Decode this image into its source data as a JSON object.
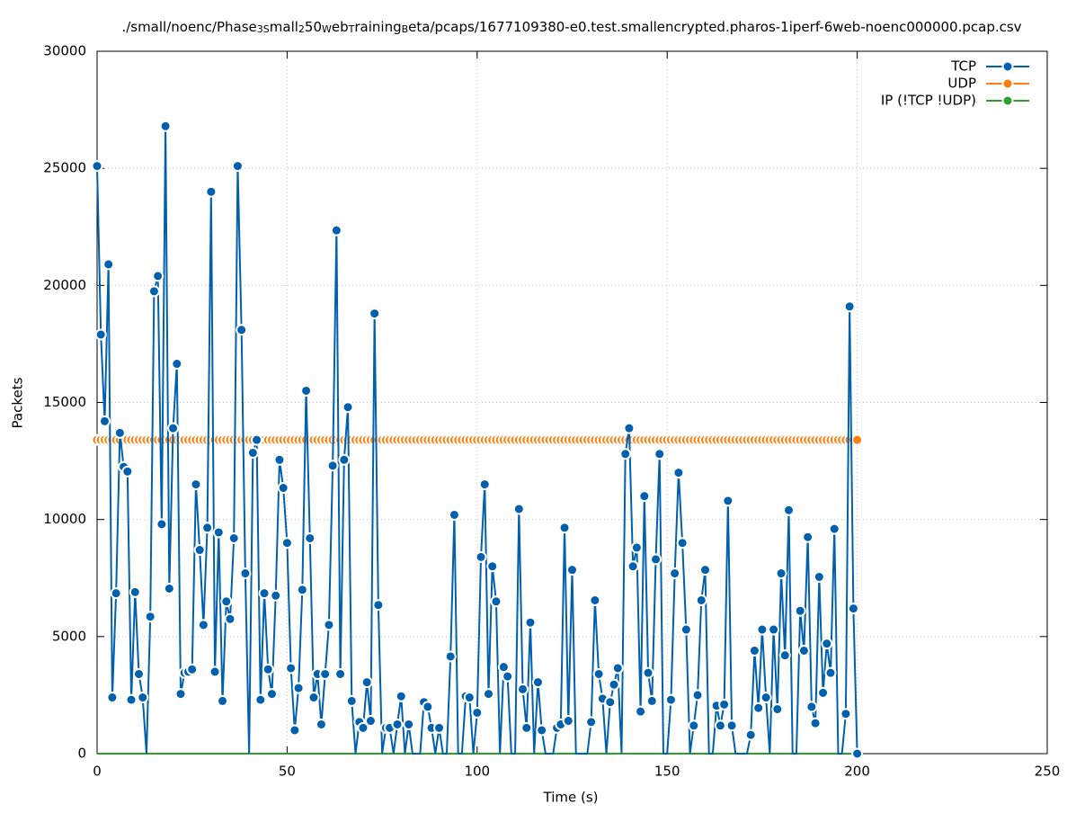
{
  "chart_data": {
    "type": "line",
    "title_parts": [
      "./small/noenc/Phase",
      "3S",
      "mall",
      "2",
      "50",
      "W",
      "eb",
      "T",
      "raining",
      "B",
      "eta/pcaps/1677109380-e0.test.smallencrypted.pharos-1iperf-6web-noenc000000.pcap.csv"
    ],
    "x_label": "Time (s)",
    "y_label": "Packets",
    "xlim": [
      0,
      250
    ],
    "xticks": [
      0,
      50,
      100,
      150,
      200,
      250
    ],
    "ylim": [
      0,
      30000
    ],
    "yticks": [
      0,
      5000,
      10000,
      15000,
      20000,
      25000,
      30000
    ],
    "grid": true,
    "legend": "top-right",
    "x": [
      0,
      1,
      2,
      3,
      4,
      5,
      6,
      7,
      8,
      9,
      10,
      11,
      12,
      13,
      14,
      15,
      16,
      17,
      18,
      19,
      20,
      21,
      22,
      23,
      24,
      25,
      26,
      27,
      28,
      29,
      30,
      31,
      32,
      33,
      34,
      35,
      36,
      37,
      38,
      39,
      40,
      41,
      42,
      43,
      44,
      45,
      46,
      47,
      48,
      49,
      50,
      51,
      52,
      53,
      54,
      55,
      56,
      57,
      58,
      59,
      60,
      61,
      62,
      63,
      64,
      65,
      66,
      67,
      68,
      69,
      70,
      71,
      72,
      73,
      74,
      75,
      76,
      77,
      78,
      79,
      80,
      81,
      82,
      83,
      84,
      85,
      86,
      87,
      88,
      89,
      90,
      91,
      92,
      93,
      94,
      95,
      96,
      97,
      98,
      99,
      100,
      101,
      102,
      103,
      104,
      105,
      106,
      107,
      108,
      109,
      110,
      111,
      112,
      113,
      114,
      115,
      116,
      117,
      118,
      119,
      120,
      121,
      122,
      123,
      124,
      125,
      126,
      127,
      128,
      129,
      130,
      131,
      132,
      133,
      134,
      135,
      136,
      137,
      138,
      139,
      140,
      141,
      142,
      143,
      144,
      145,
      146,
      147,
      148,
      149,
      150,
      151,
      152,
      153,
      154,
      155,
      156,
      157,
      158,
      159,
      160,
      161,
      162,
      163,
      164,
      165,
      166,
      167,
      168,
      169,
      170,
      171,
      172,
      173,
      174,
      175,
      176,
      177,
      178,
      179,
      180,
      181,
      182,
      183,
      184,
      185,
      186,
      187,
      188,
      189,
      190,
      191,
      192,
      193,
      194,
      195,
      196,
      197,
      198,
      199,
      200
    ],
    "series": [
      {
        "name": "TCP",
        "color": "#0060ad",
        "values": [
          25100,
          17900,
          14200,
          20900,
          2400,
          6850,
          13700,
          12250,
          12050,
          2300,
          6900,
          3400,
          2400,
          0,
          5850,
          19750,
          20400,
          9800,
          26800,
          7050,
          13900,
          16650,
          2550,
          3450,
          3500,
          3600,
          11500,
          8700,
          5500,
          9650,
          24000,
          3500,
          9450,
          2250,
          6500,
          5750,
          9200,
          25100,
          18100,
          7700,
          0,
          12850,
          13400,
          2300,
          6850,
          3600,
          2550,
          6750,
          12550,
          11350,
          9000,
          3650,
          1000,
          2800,
          7000,
          15500,
          9200,
          2400,
          3400,
          1250,
          3400,
          5500,
          12300,
          22350,
          3400,
          12550,
          14800,
          2250,
          0,
          1350,
          1100,
          3050,
          1400,
          18800,
          6350,
          0,
          1100,
          1100,
          0,
          1250,
          2450,
          0,
          1250,
          0,
          0,
          0,
          2200,
          2000,
          1100,
          0,
          1100,
          0,
          0,
          4150,
          10200,
          0,
          0,
          2450,
          2400,
          0,
          1750,
          8400,
          11500,
          2550,
          8000,
          6500,
          0,
          3700,
          3300,
          0,
          0,
          10450,
          2750,
          1100,
          5600,
          0,
          3050,
          1000,
          0,
          0,
          0,
          1100,
          1250,
          9650,
          1400,
          7850,
          0,
          0,
          0,
          0,
          1350,
          6550,
          3400,
          2350,
          0,
          2200,
          2950,
          3650,
          0,
          12800,
          13900,
          8000,
          8800,
          1800,
          11000,
          3450,
          2250,
          8300,
          12800,
          0,
          0,
          2300,
          7700,
          12000,
          9000,
          5300,
          0,
          1200,
          2500,
          6550,
          7850,
          0,
          0,
          2050,
          1200,
          2100,
          10800,
          1200,
          0,
          0,
          0,
          0,
          800,
          4400,
          1950,
          5300,
          2400,
          0,
          5300,
          1900,
          7700,
          4200,
          10400,
          0,
          0,
          6100,
          4400,
          9250,
          2000,
          1300,
          7550,
          2600,
          4700,
          3450,
          9600,
          0,
          0,
          1700,
          19100,
          6200,
          0
        ]
      },
      {
        "name": "UDP",
        "color": "#ff7f0e",
        "values": [
          13400,
          13400,
          13400,
          13400,
          13400,
          13400,
          13400,
          13400,
          13400,
          13400,
          13400,
          13400,
          13400,
          13400,
          13400,
          13400,
          13400,
          13400,
          13400,
          13400,
          13400,
          13400,
          13400,
          13400,
          13400,
          13400,
          13400,
          13400,
          13400,
          13400,
          13400,
          13400,
          13400,
          13400,
          13400,
          13400,
          13400,
          13400,
          13400,
          13400,
          13400,
          13400,
          13400,
          13400,
          13400,
          13400,
          13400,
          13400,
          13400,
          13400,
          13400,
          13400,
          13400,
          13400,
          13400,
          13400,
          13400,
          13400,
          13400,
          13400,
          13400,
          13400,
          13400,
          13400,
          13400,
          13400,
          13400,
          13400,
          13400,
          13400,
          13400,
          13400,
          13400,
          13400,
          13400,
          13400,
          13400,
          13400,
          13400,
          13400,
          13400,
          13400,
          13400,
          13400,
          13400,
          13400,
          13400,
          13400,
          13400,
          13400,
          13400,
          13400,
          13400,
          13400,
          13400,
          13400,
          13400,
          13400,
          13400,
          13400,
          13400,
          13400,
          13400,
          13400,
          13400,
          13400,
          13400,
          13400,
          13400,
          13400,
          13400,
          13400,
          13400,
          13400,
          13400,
          13400,
          13400,
          13400,
          13400,
          13400,
          13400,
          13400,
          13400,
          13400,
          13400,
          13400,
          13400,
          13400,
          13400,
          13400,
          13400,
          13400,
          13400,
          13400,
          13400,
          13400,
          13400,
          13400,
          13400,
          13400,
          13400,
          13400,
          13400,
          13400,
          13400,
          13400,
          13400,
          13400,
          13400,
          13400,
          13400,
          13400,
          13400,
          13400,
          13400,
          13400,
          13400,
          13400,
          13400,
          13400,
          13400,
          13400,
          13400,
          13400,
          13400,
          13400,
          13400,
          13400,
          13400,
          13400,
          13400,
          13400,
          13400,
          13400,
          13400,
          13400,
          13400,
          13400,
          13400,
          13400,
          13400,
          13400,
          13400,
          13400,
          13400,
          13400,
          13400,
          13400,
          13400,
          13400,
          13400,
          13400,
          13400,
          13400,
          13400,
          13400,
          13400,
          13400,
          13400,
          13400,
          13400
        ]
      },
      {
        "name": "IP (!TCP  !UDP)",
        "color": "#2ca02c",
        "values": [
          0,
          0,
          0,
          0,
          0,
          0,
          0,
          0,
          0,
          0,
          0,
          0,
          0,
          0,
          0,
          0,
          0,
          0,
          0,
          0,
          0,
          0,
          0,
          0,
          0,
          0,
          0,
          0,
          0,
          0,
          0,
          0,
          0,
          0,
          0,
          0,
          0,
          0,
          0,
          0,
          0,
          0,
          0,
          0,
          0,
          0,
          0,
          0,
          0,
          0,
          0,
          0,
          0,
          0,
          0,
          0,
          0,
          0,
          0,
          0,
          0,
          0,
          0,
          0,
          0,
          0,
          0,
          0,
          0,
          0,
          0,
          0,
          0,
          0,
          0,
          0,
          0,
          0,
          0,
          0,
          0,
          0,
          0,
          0,
          0,
          0,
          0,
          0,
          0,
          0,
          0,
          0,
          0,
          0,
          0,
          0,
          0,
          0,
          0,
          0,
          0,
          0,
          0,
          0,
          0,
          0,
          0,
          0,
          0,
          0,
          0,
          0,
          0,
          0,
          0,
          0,
          0,
          0,
          0,
          0,
          0,
          0,
          0,
          0,
          0,
          0,
          0,
          0,
          0,
          0,
          0,
          0,
          0,
          0,
          0,
          0,
          0,
          0,
          0,
          0,
          0,
          0,
          0,
          0,
          0,
          0,
          0,
          0,
          0,
          0,
          0,
          0,
          0,
          0,
          0,
          0,
          0,
          0,
          0,
          0,
          0,
          0,
          0,
          0,
          0,
          0,
          0,
          0,
          0,
          0,
          0,
          0,
          0,
          0,
          0,
          0,
          0,
          0,
          0,
          0,
          0,
          0,
          0,
          0,
          0,
          0,
          0,
          0,
          0,
          0,
          0,
          0,
          0,
          0,
          0,
          0,
          0,
          0,
          0,
          0,
          0
        ]
      }
    ]
  }
}
